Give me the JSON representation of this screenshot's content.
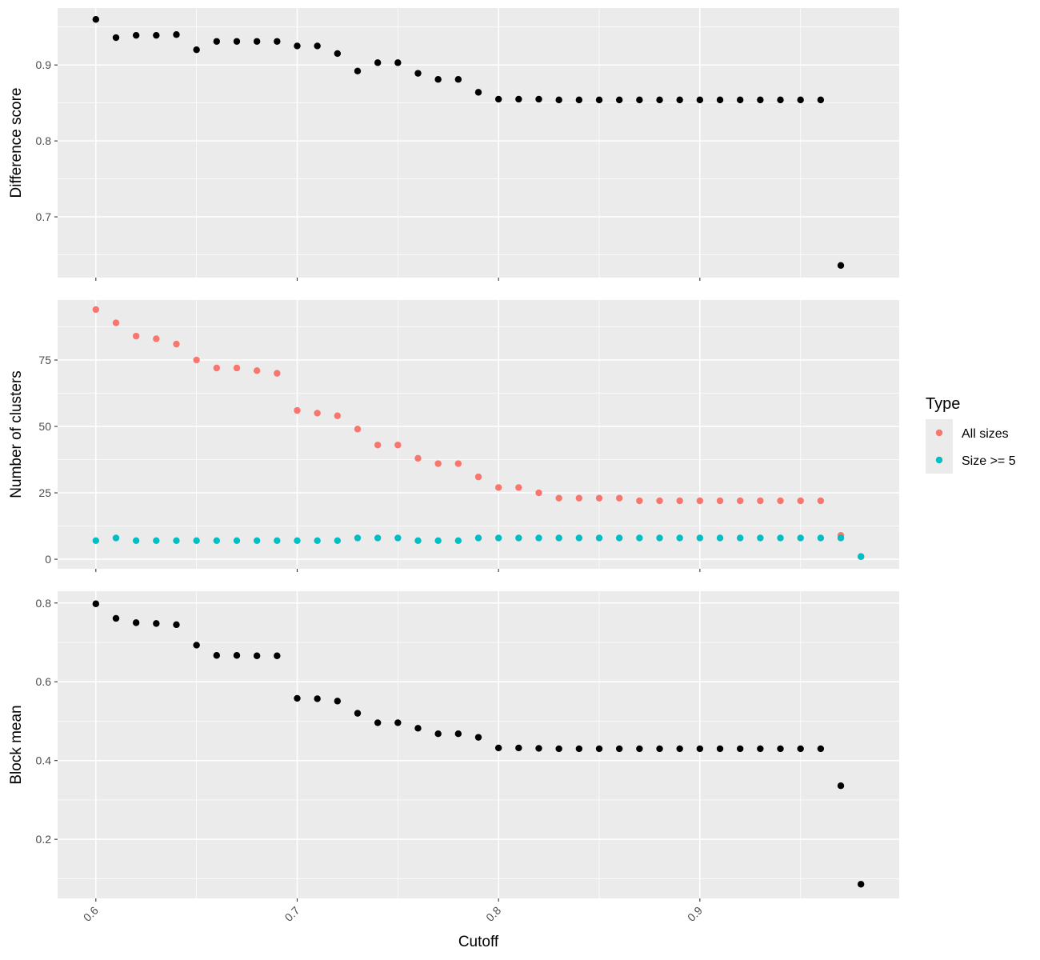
{
  "figure": {
    "xlabel": "Cutoff",
    "x_ticks": [
      "0.6",
      "0.7",
      "0.8",
      "0.9"
    ],
    "x_tick_values": [
      0.6,
      0.7,
      0.8,
      0.9
    ]
  },
  "legend": {
    "title": "Type",
    "items": [
      {
        "label": "All sizes",
        "color": "#F8766D"
      },
      {
        "label": "Size >= 5",
        "color": "#00BFC4"
      }
    ]
  },
  "chart_data": [
    {
      "type": "scatter",
      "ylabel": "Difference score",
      "xlim": [
        0.581,
        0.999
      ],
      "ylim": [
        0.62,
        0.975
      ],
      "y_ticks": [
        "0.7",
        "0.8",
        "0.9"
      ],
      "y_tick_values": [
        0.7,
        0.8,
        0.9
      ],
      "series": [
        {
          "color": "#000000",
          "x": [
            0.6,
            0.61,
            0.62,
            0.63,
            0.64,
            0.65,
            0.66,
            0.67,
            0.68,
            0.69,
            0.7,
            0.71,
            0.72,
            0.73,
            0.74,
            0.75,
            0.76,
            0.77,
            0.78,
            0.79,
            0.8,
            0.81,
            0.82,
            0.83,
            0.84,
            0.85,
            0.86,
            0.87,
            0.88,
            0.89,
            0.9,
            0.91,
            0.92,
            0.93,
            0.94,
            0.95,
            0.96,
            0.97
          ],
          "y": [
            0.96,
            0.936,
            0.939,
            0.939,
            0.94,
            0.92,
            0.931,
            0.931,
            0.931,
            0.931,
            0.925,
            0.925,
            0.915,
            0.892,
            0.903,
            0.903,
            0.889,
            0.881,
            0.881,
            0.864,
            0.855,
            0.855,
            0.855,
            0.854,
            0.854,
            0.854,
            0.854,
            0.854,
            0.854,
            0.854,
            0.854,
            0.854,
            0.854,
            0.854,
            0.854,
            0.854,
            0.854,
            0.636
          ]
        }
      ]
    },
    {
      "type": "scatter",
      "ylabel": "Number of clusters",
      "xlim": [
        0.581,
        0.999
      ],
      "ylim": [
        -3.6,
        97.6
      ],
      "y_ticks": [
        "0",
        "25",
        "50",
        "75"
      ],
      "y_tick_values": [
        0,
        25,
        50,
        75
      ],
      "series": [
        {
          "name": "All sizes",
          "color": "#F8766D",
          "x": [
            0.6,
            0.61,
            0.62,
            0.63,
            0.64,
            0.65,
            0.66,
            0.67,
            0.68,
            0.69,
            0.7,
            0.71,
            0.72,
            0.73,
            0.74,
            0.75,
            0.76,
            0.77,
            0.78,
            0.79,
            0.8,
            0.81,
            0.82,
            0.83,
            0.84,
            0.85,
            0.86,
            0.87,
            0.88,
            0.89,
            0.9,
            0.91,
            0.92,
            0.93,
            0.94,
            0.95,
            0.96,
            0.97,
            0.98
          ],
          "y": [
            94,
            89,
            84,
            83,
            81,
            75,
            72,
            72,
            71,
            70,
            56,
            55,
            54,
            49,
            43,
            43,
            38,
            36,
            36,
            31,
            27,
            27,
            25,
            23,
            23,
            23,
            23,
            22,
            22,
            22,
            22,
            22,
            22,
            22,
            22,
            22,
            22,
            9,
            1
          ]
        },
        {
          "name": "Size >= 5",
          "color": "#00BFC4",
          "x": [
            0.6,
            0.61,
            0.62,
            0.63,
            0.64,
            0.65,
            0.66,
            0.67,
            0.68,
            0.69,
            0.7,
            0.71,
            0.72,
            0.73,
            0.74,
            0.75,
            0.76,
            0.77,
            0.78,
            0.79,
            0.8,
            0.81,
            0.82,
            0.83,
            0.84,
            0.85,
            0.86,
            0.87,
            0.88,
            0.89,
            0.9,
            0.91,
            0.92,
            0.93,
            0.94,
            0.95,
            0.96,
            0.97,
            0.98
          ],
          "y": [
            7,
            8,
            7,
            7,
            7,
            7,
            7,
            7,
            7,
            7,
            7,
            7,
            7,
            8,
            8,
            8,
            7,
            7,
            7,
            8,
            8,
            8,
            8,
            8,
            8,
            8,
            8,
            8,
            8,
            8,
            8,
            8,
            8,
            8,
            8,
            8,
            8,
            8,
            1
          ]
        }
      ]
    },
    {
      "type": "scatter",
      "ylabel": "Block mean",
      "xlim": [
        0.581,
        0.999
      ],
      "ylim": [
        0.05,
        0.83
      ],
      "y_ticks": [
        "0.2",
        "0.4",
        "0.6",
        "0.8"
      ],
      "y_tick_values": [
        0.2,
        0.4,
        0.6,
        0.8
      ],
      "series": [
        {
          "color": "#000000",
          "x": [
            0.6,
            0.61,
            0.62,
            0.63,
            0.64,
            0.65,
            0.66,
            0.67,
            0.68,
            0.69,
            0.7,
            0.71,
            0.72,
            0.73,
            0.74,
            0.75,
            0.76,
            0.77,
            0.78,
            0.79,
            0.8,
            0.81,
            0.82,
            0.83,
            0.84,
            0.85,
            0.86,
            0.87,
            0.88,
            0.89,
            0.9,
            0.91,
            0.92,
            0.93,
            0.94,
            0.95,
            0.96,
            0.97,
            0.98
          ],
          "y": [
            0.798,
            0.761,
            0.75,
            0.748,
            0.745,
            0.693,
            0.667,
            0.667,
            0.666,
            0.666,
            0.558,
            0.557,
            0.551,
            0.52,
            0.496,
            0.496,
            0.482,
            0.468,
            0.468,
            0.459,
            0.432,
            0.432,
            0.431,
            0.43,
            0.43,
            0.43,
            0.43,
            0.43,
            0.43,
            0.43,
            0.43,
            0.43,
            0.43,
            0.43,
            0.43,
            0.43,
            0.43,
            0.336,
            0.086
          ]
        }
      ]
    }
  ]
}
